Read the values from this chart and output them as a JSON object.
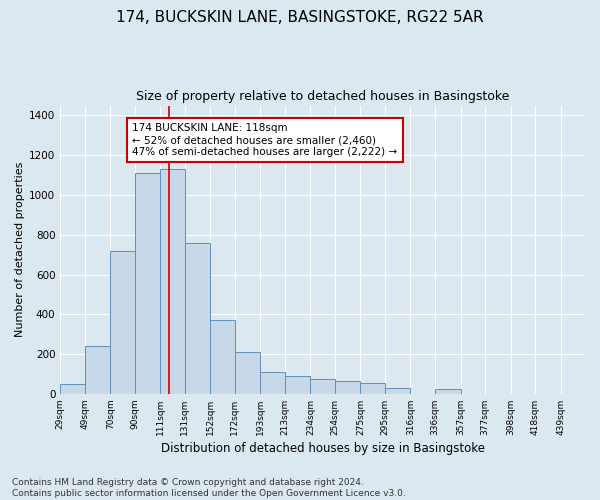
{
  "title1": "174, BUCKSKIN LANE, BASINGSTOKE, RG22 5AR",
  "title2": "Size of property relative to detached houses in Basingstoke",
  "xlabel": "Distribution of detached houses by size in Basingstoke",
  "ylabel": "Number of detached properties",
  "footnote": "Contains HM Land Registry data © Crown copyright and database right 2024.\nContains public sector information licensed under the Open Government Licence v3.0.",
  "bar_left_edges": [
    29,
    49,
    70,
    90,
    111,
    131,
    152,
    172,
    193,
    213,
    234,
    254,
    275,
    295,
    316,
    336,
    357,
    377,
    398,
    419
  ],
  "bar_widths": [
    20,
    21,
    20,
    21,
    20,
    21,
    20,
    21,
    20,
    21,
    20,
    21,
    20,
    21,
    20,
    21,
    20,
    21,
    20,
    20
  ],
  "bar_heights": [
    50,
    240,
    720,
    1110,
    1130,
    760,
    370,
    210,
    110,
    90,
    75,
    65,
    55,
    30,
    0,
    25,
    0,
    0,
    0,
    0
  ],
  "bar_facecolor": "#c8d8e8",
  "bar_edgecolor": "#6090b8",
  "property_size": 118,
  "vline_color": "#cc0000",
  "annotation_text": "174 BUCKSKIN LANE: 118sqm\n← 52% of detached houses are smaller (2,460)\n47% of semi-detached houses are larger (2,222) →",
  "annotation_box_edgecolor": "#cc0000",
  "annotation_box_facecolor": "#ffffff",
  "ylim": [
    0,
    1450
  ],
  "tick_labels": [
    "29sqm",
    "49sqm",
    "70sqm",
    "90sqm",
    "111sqm",
    "131sqm",
    "152sqm",
    "172sqm",
    "193sqm",
    "213sqm",
    "234sqm",
    "254sqm",
    "275sqm",
    "295sqm",
    "316sqm",
    "336sqm",
    "357sqm",
    "377sqm",
    "398sqm",
    "418sqm",
    "439sqm"
  ],
  "tick_positions": [
    29,
    49,
    70,
    90,
    111,
    131,
    152,
    172,
    193,
    213,
    234,
    254,
    275,
    295,
    316,
    336,
    357,
    377,
    398,
    418,
    439
  ],
  "background_color": "#dce8f0",
  "plot_background_color": "#dce8f0",
  "grid_color": "#ffffff",
  "title1_fontsize": 11,
  "title2_fontsize": 9,
  "xlabel_fontsize": 8.5,
  "ylabel_fontsize": 8,
  "footnote_fontsize": 6.5,
  "annotation_fontsize": 7.5,
  "yticks": [
    0,
    200,
    400,
    600,
    800,
    1000,
    1200,
    1400
  ],
  "xlim": [
    29,
    459
  ]
}
